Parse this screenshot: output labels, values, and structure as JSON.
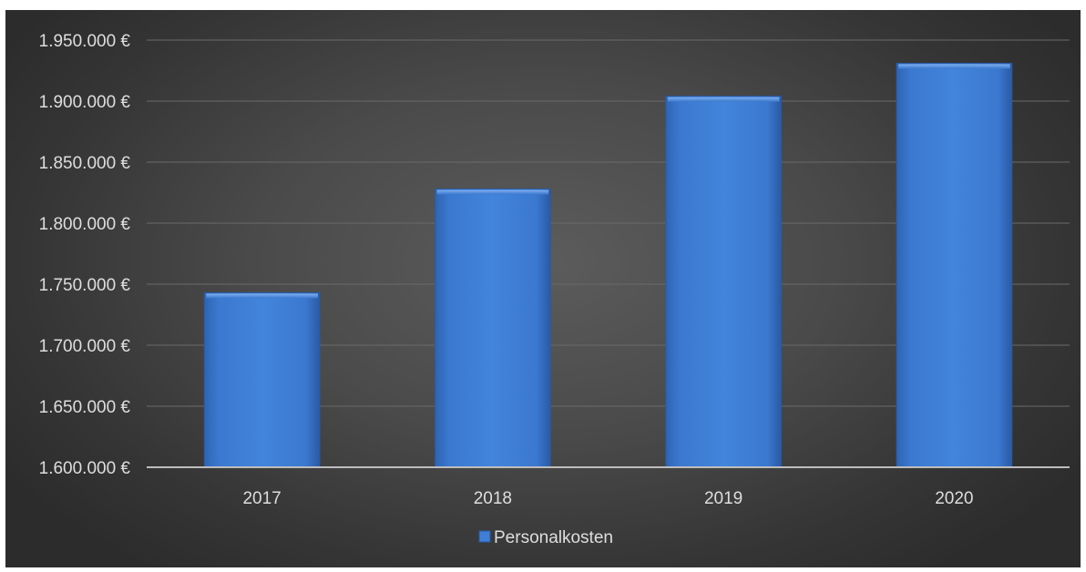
{
  "chart_data": {
    "type": "bar",
    "title": "",
    "xlabel": "",
    "ylabel": "",
    "categories": [
      "2017",
      "2018",
      "2019",
      "2020"
    ],
    "series": [
      {
        "name": "Personalkosten",
        "values": [
          1743000,
          1828000,
          1904000,
          1931000
        ]
      }
    ],
    "ylim": [
      1600000,
      1950000
    ],
    "yticks": [
      1600000,
      1650000,
      1700000,
      1750000,
      1800000,
      1850000,
      1900000,
      1950000
    ],
    "ytick_labels": [
      "1.600.000 €",
      "1.650.000 €",
      "1.700.000 €",
      "1.750.000 €",
      "1.800.000 €",
      "1.850.000 €",
      "1.900.000 €",
      "1.950.000 €"
    ],
    "grid": true,
    "legend_position": "bottom",
    "colors": {
      "bar": "#3f7fd6",
      "bar_edge": "#2a5aa3",
      "grid": "#6a6a6a",
      "axis": "#bdbdbd",
      "background": "#4a4a4a",
      "text": "#dedede"
    }
  }
}
